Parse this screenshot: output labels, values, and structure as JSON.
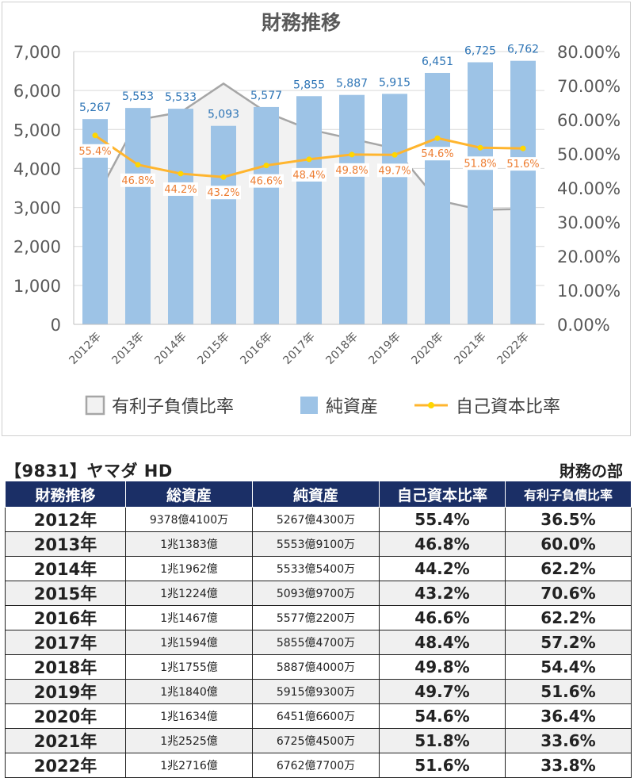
{
  "chart_data": {
    "type": "bar",
    "title": "財務推移",
    "categories": [
      "2012年",
      "2013年",
      "2014年",
      "2015年",
      "2016年",
      "2017年",
      "2018年",
      "2019年",
      "2020年",
      "2021年",
      "2022年"
    ],
    "y_left": {
      "min": 0,
      "max": 7000,
      "ticks": [
        "0",
        "1,000",
        "2,000",
        "3,000",
        "4,000",
        "5,000",
        "6,000",
        "7,000"
      ]
    },
    "y_right": {
      "min": 0,
      "max": 80,
      "ticks": [
        "0.00%",
        "10.00%",
        "20.00%",
        "30.00%",
        "40.00%",
        "50.00%",
        "60.00%",
        "70.00%",
        "80.00%"
      ]
    },
    "series": [
      {
        "name": "有利子負債比率",
        "type": "area",
        "axis": "right",
        "color": "#a6a6a6",
        "fill": "#f2f2f2",
        "values": [
          36.5,
          60.0,
          62.2,
          70.6,
          62.2,
          57.2,
          54.4,
          51.6,
          36.4,
          33.6,
          33.8
        ]
      },
      {
        "name": "純資産",
        "type": "bar",
        "axis": "left",
        "color": "#9dc3e6",
        "values": [
          5267,
          5553,
          5533,
          5093,
          5577,
          5855,
          5887,
          5915,
          6451,
          6725,
          6762
        ],
        "labels": [
          "5,267",
          "5,553",
          "5,533",
          "5,093",
          "5,577",
          "5,855",
          "5,887",
          "5,915",
          "6,451",
          "6,725",
          "6,762"
        ]
      },
      {
        "name": "自己資本比率",
        "type": "line",
        "axis": "right",
        "color": "#ffb52e",
        "marker": "#ffd600",
        "values": [
          55.4,
          46.8,
          44.2,
          43.2,
          46.6,
          48.4,
          49.8,
          49.7,
          54.6,
          51.8,
          51.6
        ],
        "labels": [
          "55.4%",
          "46.8%",
          "44.2%",
          "43.2%",
          "46.6%",
          "48.4%",
          "49.8%",
          "49.7%",
          "54.6%",
          "51.8%",
          "51.6%"
        ]
      }
    ],
    "legend_position": "bottom",
    "grid": true
  },
  "table": {
    "code_title": "【9831】ヤマダ HD",
    "section_title": "財務の部",
    "headers": [
      "財務推移",
      "総資産",
      "純資産",
      "自己資本比率",
      "有利子負債比率"
    ],
    "rows": [
      {
        "year": "2012年",
        "total": "9378億4100万",
        "net": "5267億4300万",
        "equity": "55.4%",
        "debt": "36.5%"
      },
      {
        "year": "2013年",
        "total": "1兆1383億",
        "net": "5553億9100万",
        "equity": "46.8%",
        "debt": "60.0%"
      },
      {
        "year": "2014年",
        "total": "1兆1962億",
        "net": "5533億5400万",
        "equity": "44.2%",
        "debt": "62.2%"
      },
      {
        "year": "2015年",
        "total": "1兆1224億",
        "net": "5093億9700万",
        "equity": "43.2%",
        "debt": "70.6%"
      },
      {
        "year": "2016年",
        "total": "1兆1467億",
        "net": "5577億2200万",
        "equity": "46.6%",
        "debt": "62.2%"
      },
      {
        "year": "2017年",
        "total": "1兆1594億",
        "net": "5855億4700万",
        "equity": "48.4%",
        "debt": "57.2%"
      },
      {
        "year": "2018年",
        "total": "1兆1755億",
        "net": "5887億4000万",
        "equity": "49.8%",
        "debt": "54.4%"
      },
      {
        "year": "2019年",
        "total": "1兆1840億",
        "net": "5915億9300万",
        "equity": "49.7%",
        "debt": "51.6%"
      },
      {
        "year": "2020年",
        "total": "1兆1634億",
        "net": "6451億6600万",
        "equity": "54.6%",
        "debt": "36.4%"
      },
      {
        "year": "2021年",
        "total": "1兆2525億",
        "net": "6725億4500万",
        "equity": "51.8%",
        "debt": "33.6%"
      },
      {
        "year": "2022年",
        "total": "1兆2716億",
        "net": "6762億7700万",
        "equity": "51.6%",
        "debt": "33.8%"
      }
    ]
  }
}
